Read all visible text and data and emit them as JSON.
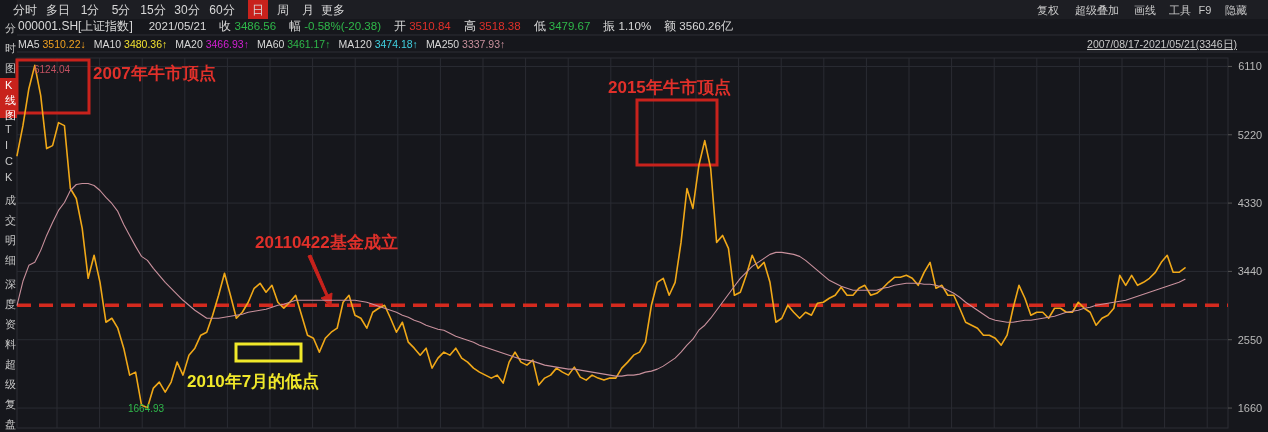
{
  "chart_data": {
    "type": "line",
    "title": "000001.SH[上证指数]",
    "categories": [
      null,
      null,
      null,
      null,
      null,
      null,
      null,
      null,
      null,
      null,
      null,
      null,
      null,
      null,
      null,
      null,
      null,
      null,
      null,
      null,
      null,
      null,
      null,
      null,
      null,
      null,
      null,
      null,
      null,
      null,
      null,
      null,
      null,
      null,
      null,
      null,
      null,
      null,
      null,
      null,
      null,
      null,
      null,
      null,
      null,
      null,
      null,
      null,
      null,
      null,
      null,
      null,
      null,
      null,
      null,
      null,
      null,
      null,
      null,
      null,
      null,
      null,
      null,
      null,
      null,
      null,
      null,
      null,
      null,
      null,
      null,
      null,
      null,
      null,
      null,
      null,
      null,
      null,
      null,
      null,
      null,
      null,
      null,
      null,
      null,
      null,
      null,
      null,
      null,
      null,
      null,
      null,
      null,
      null,
      null,
      null,
      null,
      null,
      null,
      null,
      null,
      null,
      null,
      null,
      null,
      null,
      null,
      null,
      null,
      null,
      null,
      null,
      null,
      null,
      null,
      null,
      null,
      null,
      null,
      null,
      null,
      null,
      null,
      null,
      null,
      null,
      null,
      null,
      null,
      null,
      null,
      null,
      null,
      null,
      null,
      null,
      null,
      null,
      null,
      null,
      null,
      null,
      null,
      null,
      null,
      null,
      null,
      null,
      null,
      null,
      null,
      null,
      null,
      null,
      null,
      null,
      null,
      null,
      null,
      null,
      null,
      null,
      null,
      null,
      null,
      null,
      null,
      null,
      null,
      null,
      null,
      null,
      null,
      null,
      null,
      null,
      null,
      null,
      null,
      null,
      null,
      null,
      null,
      null,
      null,
      null,
      null,
      null,
      null,
      null,
      null,
      null,
      null,
      null,
      null,
      null,
      null,
      null
    ],
    "series": [
      {
        "color": "#f0a818",
        "values": [
          4949,
          5339,
          5820,
          6124.04,
          5729,
          5040,
          5079,
          5378,
          5339,
          4520,
          4390,
          4000,
          3350,
          3650,
          3298,
          2778,
          2830,
          2700,
          2440,
          2089,
          2128,
          1699,
          1664.93,
          1920,
          1998,
          1868,
          1998,
          2258,
          2089,
          2349,
          2440,
          2609,
          2648,
          2869,
          3129,
          3415,
          3129,
          2830,
          2908,
          3038,
          3220,
          3285,
          3168,
          3259,
          3038,
          2960,
          3038,
          3129,
          2869,
          2609,
          2570,
          2388,
          2570,
          2648,
          2700,
          3038,
          3129,
          2869,
          2830,
          2700,
          2908,
          2960,
          2999,
          2830,
          2648,
          2778,
          2518,
          2440,
          2349,
          2440,
          2180,
          2310,
          2388,
          2349,
          2440,
          2310,
          2258,
          2180,
          2128,
          2089,
          2050,
          2089,
          1985,
          2258,
          2388,
          2258,
          2219,
          2284,
          1959,
          2050,
          2089,
          2180,
          2128,
          2089,
          2193,
          2063,
          2024,
          2089,
          2050,
          2024,
          2050,
          2050,
          2180,
          2258,
          2349,
          2388,
          2518,
          2999,
          3298,
          3350,
          3129,
          3298,
          3818,
          4520,
          4260,
          4819,
          5144,
          4780,
          3818,
          3909,
          3740,
          3129,
          3168,
          3389,
          3650,
          3480,
          3558,
          3298,
          2778,
          2830,
          2999,
          2908,
          2830,
          2908,
          2869,
          3025,
          3038,
          3090,
          3129,
          3233,
          3129,
          3129,
          3220,
          3259,
          3129,
          3155,
          3220,
          3298,
          3363,
          3363,
          3389,
          3350,
          3259,
          3428,
          3558,
          3220,
          3259,
          3129,
          3129,
          2960,
          2778,
          2739,
          2700,
          2609,
          2609,
          2570,
          2479,
          2609,
          2960,
          3259,
          3090,
          2869,
          2908,
          2908,
          2830,
          2960,
          2960,
          2908,
          2908,
          3038,
          2960,
          2908,
          2739,
          2830,
          2869,
          2960,
          3389,
          3259,
          3389,
          3259,
          3298,
          3350,
          3428,
          3558,
          3650,
          3428,
          3428,
          3486.56
        ]
      },
      {
        "color": "#c8909c",
        "values": [
          2999,
          3311,
          3519,
          3558,
          3714,
          3909,
          4078,
          4234,
          4338,
          4494,
          4572,
          4585,
          4585,
          4559,
          4494,
          4403,
          4325,
          4221,
          4052,
          3909,
          3766,
          3636,
          3584,
          3480,
          3389,
          3298,
          3220,
          3142,
          3064,
          2999,
          2934,
          2882,
          2830,
          2830,
          2830,
          2843,
          2856,
          2869,
          2882,
          2908,
          2921,
          2934,
          2947,
          2973,
          2999,
          3012,
          3038,
          3064,
          3064,
          3064,
          3064,
          3064,
          3064,
          3064,
          3064,
          3064,
          3064,
          3064,
          3051,
          3038,
          3012,
          2986,
          2960,
          2934,
          2908,
          2869,
          2843,
          2804,
          2778,
          2739,
          2713,
          2687,
          2674,
          2635,
          2596,
          2570,
          2544,
          2518,
          2479,
          2453,
          2427,
          2401,
          2375,
          2349,
          2323,
          2297,
          2284,
          2271,
          2245,
          2219,
          2206,
          2193,
          2180,
          2167,
          2167,
          2154,
          2141,
          2128,
          2115,
          2102,
          2089,
          2076,
          2076,
          2089,
          2089,
          2102,
          2128,
          2141,
          2167,
          2206,
          2258,
          2310,
          2388,
          2479,
          2557,
          2674,
          2739,
          2830,
          2934,
          3038,
          3142,
          3246,
          3350,
          3428,
          3506,
          3558,
          3610,
          3662,
          3688,
          3688,
          3675,
          3662,
          3636,
          3584,
          3519,
          3454,
          3389,
          3324,
          3285,
          3246,
          3220,
          3194,
          3194,
          3194,
          3194,
          3194,
          3220,
          3233,
          3259,
          3272,
          3285,
          3285,
          3285,
          3272,
          3272,
          3259,
          3233,
          3194,
          3155,
          3103,
          3038,
          2986,
          2934,
          2882,
          2830,
          2804,
          2791,
          2778,
          2778,
          2791,
          2804,
          2804,
          2817,
          2830,
          2843,
          2856,
          2882,
          2908,
          2921,
          2934,
          2960,
          2973,
          2999,
          3012,
          3025,
          3038,
          3051,
          3064,
          3090,
          3116,
          3142,
          3168,
          3194,
          3220,
          3246,
          3272,
          3298,
          3337.93
        ]
      }
    ],
    "ylim": [
      1400,
      6220
    ],
    "yticks": [
      1660,
      2550,
      3440,
      4330,
      5220,
      6110
    ],
    "grid": true,
    "ref_lines": [
      {
        "axis": "y",
        "value": 3000,
        "color": "#d42a1e",
        "line_style": "dashed"
      }
    ],
    "annotations": [
      "2007年牛市顶点",
      "2015年牛市顶点",
      "20110422基金成立",
      "2010年7月的低点",
      "分时",
      "多日",
      "1分",
      "5分",
      "15分",
      "30分",
      "60分",
      "日",
      "周",
      "月",
      "更多",
      "复权",
      "超级叠加",
      "画线",
      "工具",
      "F9",
      "隐藏",
      "2021/05/21",
      "收 3486.56",
      "幅 -0.58%(-20.38)",
      "开 3510.84",
      "高 3518.38",
      "低 3479.67",
      "振 1.10%",
      "额 3560.26亿",
      "MA5 3510.22↓",
      "MA10 3480.36↑",
      "MA20 3466.93↑",
      "MA60 3461.17↑",
      "MA120 3474.18↑",
      "MA250 3337.93↑",
      "2007/08/17-2021/05/21(3346日)",
      "分时图",
      "K线图",
      "TICK",
      "成交明细",
      "深度资料",
      "超级复盘",
      "6124.04",
      "1664.93"
    ]
  }
}
